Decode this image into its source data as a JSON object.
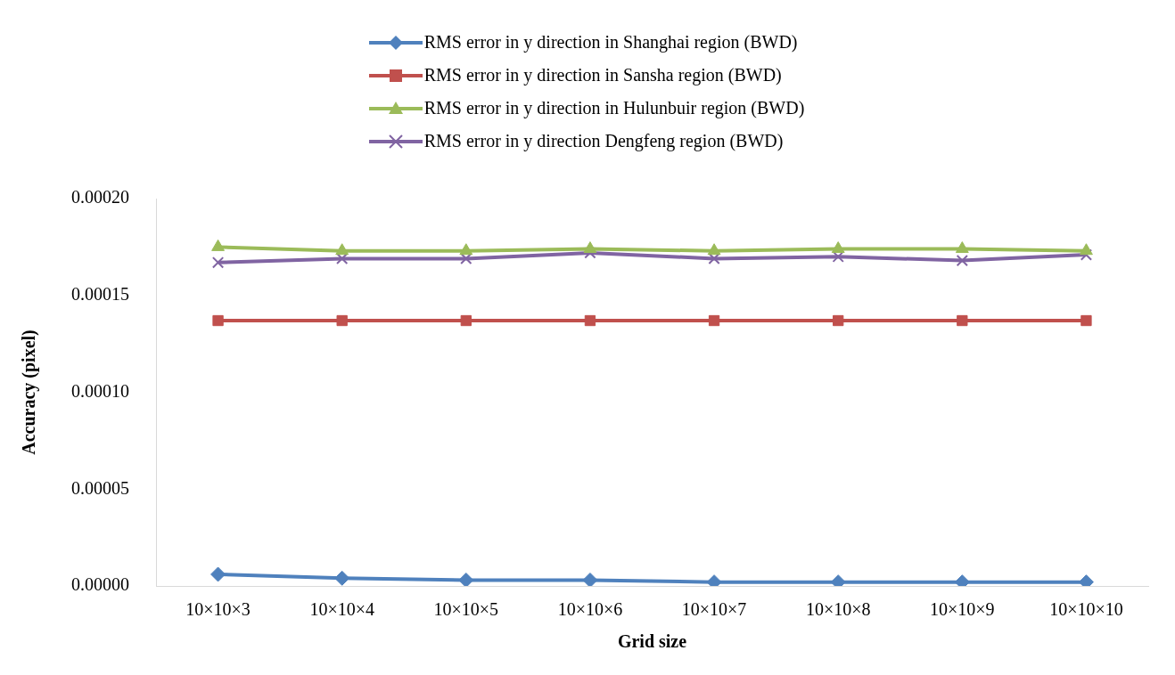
{
  "chart_data": {
    "type": "line",
    "xlabel": "Grid size",
    "ylabel": "Accuracy (pixel)",
    "categories": [
      "10×10×3",
      "10×10×4",
      "10×10×5",
      "10×10×6",
      "10×10×7",
      "10×10×8",
      "10×10×9",
      "10×10×10"
    ],
    "series": [
      {
        "name": "RMS error in y direction in Shanghai region (BWD)",
        "color": "#4f81bd",
        "marker": "diamond",
        "values": [
          6e-06,
          4e-06,
          3e-06,
          3e-06,
          2e-06,
          2e-06,
          2e-06,
          2e-06
        ]
      },
      {
        "name": "RMS error in y direction in Sansha region (BWD)",
        "color": "#c0504d",
        "marker": "square",
        "values": [
          0.000137,
          0.000137,
          0.000137,
          0.000137,
          0.000137,
          0.000137,
          0.000137,
          0.000137
        ]
      },
      {
        "name": "RMS error in y direction in Hulunbuir region (BWD)",
        "color": "#9bbb59",
        "marker": "triangle",
        "values": [
          0.000175,
          0.000173,
          0.000173,
          0.000174,
          0.000173,
          0.000174,
          0.000174,
          0.000173
        ]
      },
      {
        "name": "RMS error in y direction Dengfeng region (BWD)",
        "color": "#8064a2",
        "marker": "cross",
        "values": [
          0.000167,
          0.000169,
          0.000169,
          0.000172,
          0.000169,
          0.00017,
          0.000168,
          0.000171
        ]
      }
    ],
    "ylim": [
      0,
      0.0002
    ],
    "yticks": [
      {
        "value": 0,
        "label": "0.00000"
      },
      {
        "value": 5e-05,
        "label": "0.00005"
      },
      {
        "value": 0.0001,
        "label": "0.00010"
      },
      {
        "value": 0.00015,
        "label": "0.00015"
      },
      {
        "value": 0.0002,
        "label": "0.00020"
      }
    ],
    "grid": false,
    "legend": "top",
    "line_style": "solid"
  }
}
